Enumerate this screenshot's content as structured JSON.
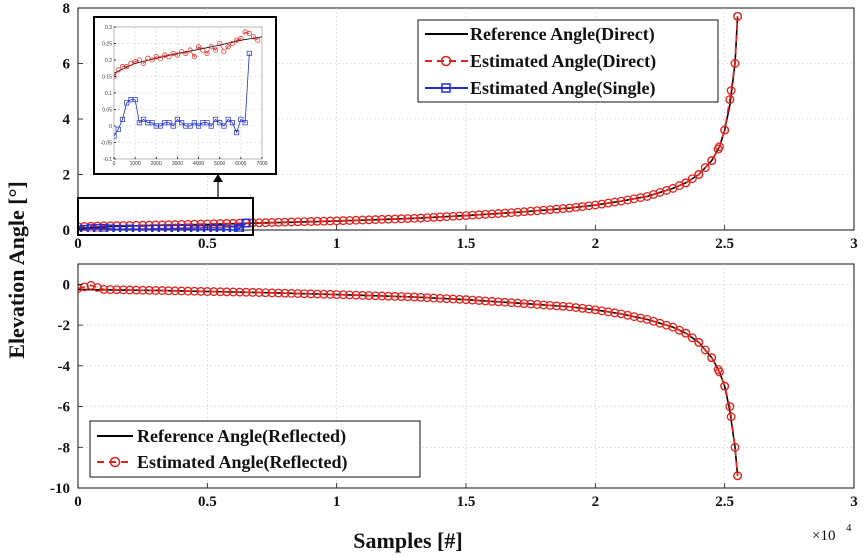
{
  "ylabel": "Elevation Angle [°]",
  "xlabel": "Samples [#]",
  "x_multiplier": "×10",
  "x_multiplier_exp": "4",
  "colors": {
    "reference": "#000000",
    "estimated": "#e8201a",
    "single": "#1f2fd6"
  },
  "chart_data": [
    {
      "type": "line",
      "panel": "top",
      "xlim": [
        0,
        30000
      ],
      "ylim": [
        0,
        8
      ],
      "xticks": [
        0,
        5000,
        10000,
        15000,
        20000,
        25000,
        30000
      ],
      "xtick_labels": [
        "0",
        "0.5",
        "1",
        "1.5",
        "2",
        "2.5",
        "3"
      ],
      "yticks": [
        0,
        2,
        4,
        6,
        8
      ],
      "ytick_labels": [
        "0",
        "2",
        "4",
        "6",
        "8"
      ],
      "grid": true,
      "legend_position": "top-right",
      "series": [
        {
          "name": "Reference Angle(Direct)",
          "style": "solid-black",
          "x": [
            0,
            1000,
            3000,
            5000,
            7000,
            10000,
            13000,
            15000,
            17000,
            19000,
            20000,
            21000,
            22000,
            23000,
            23500,
            24000,
            24500,
            24800,
            25000,
            25200,
            25400,
            25500
          ],
          "y": [
            0.05,
            0.12,
            0.17,
            0.2,
            0.25,
            0.32,
            0.42,
            0.52,
            0.64,
            0.79,
            0.9,
            1.04,
            1.21,
            1.5,
            1.7,
            2.0,
            2.5,
            3.0,
            3.6,
            4.5,
            6.0,
            7.7
          ]
        },
        {
          "name": "Estimated Angle(Direct)",
          "style": "dashed-red-circles",
          "x": [
            0,
            1000,
            3000,
            5000,
            7000,
            10000,
            13000,
            15000,
            17000,
            19000,
            20000,
            21000,
            22000,
            23000,
            23500,
            24000,
            24500,
            24800,
            25000,
            25200,
            25400,
            25500
          ],
          "y": [
            0.12,
            0.15,
            0.18,
            0.22,
            0.26,
            0.33,
            0.42,
            0.52,
            0.64,
            0.79,
            0.9,
            1.04,
            1.21,
            1.5,
            1.7,
            2.0,
            2.5,
            3.0,
            3.6,
            4.7,
            6.0,
            7.7
          ]
        },
        {
          "name": "Estimated Angle(Single)",
          "style": "solid-blue-squares",
          "x": [
            0,
            500,
            1000,
            1500,
            2000,
            2500,
            3000,
            3500,
            4000,
            4500,
            5000,
            5500,
            6000,
            6200,
            6500
          ],
          "y": [
            0.0,
            0.05,
            0.06,
            0.02,
            0.03,
            0.0,
            0.03,
            0.02,
            0.03,
            0.02,
            0.02,
            0.03,
            0.0,
            0.03,
            0.25
          ]
        }
      ]
    },
    {
      "type": "line",
      "panel": "inset",
      "xlim": [
        0,
        7000
      ],
      "ylim": [
        -0.1,
        0.3
      ],
      "xticks": [
        0,
        1000,
        2000,
        3000,
        4000,
        5000,
        6000,
        7000
      ],
      "xtick_labels": [
        "0",
        "1000",
        "2000",
        "3000",
        "4000",
        "5000",
        "6000",
        "7000"
      ],
      "yticks": [
        -0.1,
        -0.05,
        0,
        0.05,
        0.1,
        0.15,
        0.2,
        0.25,
        0.3
      ],
      "ytick_labels": [
        "-0.1",
        "-0.05",
        "0",
        "0.05",
        "0.1",
        "0.15",
        "0.2",
        "0.25",
        "0.3"
      ],
      "grid": true,
      "series": [
        {
          "style": "solid-black",
          "x": [
            0,
            500,
            1000,
            2000,
            3000,
            4000,
            5000,
            6000,
            7000
          ],
          "y": [
            0.16,
            0.175,
            0.19,
            0.205,
            0.22,
            0.232,
            0.245,
            0.26,
            0.27
          ]
        },
        {
          "style": "dashed-red-circles",
          "x": [
            0,
            200,
            400,
            600,
            800,
            1000,
            1200,
            1400,
            1600,
            1800,
            2000,
            2200,
            2400,
            2600,
            2800,
            3000,
            3200,
            3400,
            3600,
            3800,
            4000,
            4200,
            4400,
            4600,
            4800,
            5000,
            5200,
            5400,
            5600,
            5800,
            6000,
            6200,
            6400,
            6600,
            6800
          ],
          "y": [
            0.15,
            0.17,
            0.18,
            0.18,
            0.19,
            0.195,
            0.2,
            0.19,
            0.205,
            0.2,
            0.21,
            0.205,
            0.215,
            0.21,
            0.22,
            0.215,
            0.225,
            0.22,
            0.23,
            0.21,
            0.24,
            0.23,
            0.22,
            0.24,
            0.23,
            0.25,
            0.225,
            0.24,
            0.25,
            0.26,
            0.265,
            0.285,
            0.28,
            0.27,
            0.26
          ]
        },
        {
          "style": "solid-blue-squares",
          "x": [
            0,
            200,
            400,
            600,
            800,
            1000,
            1200,
            1400,
            1600,
            1800,
            2000,
            2200,
            2400,
            2600,
            2800,
            3000,
            3200,
            3400,
            3600,
            3800,
            4000,
            4200,
            4400,
            4600,
            4800,
            5000,
            5200,
            5400,
            5600,
            5800,
            6000,
            6200,
            6400
          ],
          "y": [
            -0.03,
            -0.01,
            0.02,
            0.07,
            0.08,
            0.08,
            0.01,
            0.02,
            0.01,
            0.01,
            0.0,
            0.0,
            0.01,
            0.01,
            0.0,
            0.02,
            0.01,
            0.0,
            0.0,
            0.01,
            0.0,
            0.01,
            0.01,
            0.0,
            0.02,
            0.01,
            0.0,
            0.02,
            0.01,
            -0.02,
            0.02,
            0.01,
            0.22
          ]
        }
      ]
    },
    {
      "type": "line",
      "panel": "bottom",
      "xlim": [
        0,
        30000
      ],
      "ylim": [
        -10,
        1
      ],
      "xticks": [
        0,
        5000,
        10000,
        15000,
        20000,
        25000,
        30000
      ],
      "xtick_labels": [
        "0",
        "0.5",
        "1",
        "1.5",
        "2",
        "2.5",
        "3"
      ],
      "yticks": [
        -10,
        -8,
        -6,
        -4,
        -2,
        0
      ],
      "ytick_labels": [
        "-10",
        "-8",
        "-6",
        "-4",
        "-2",
        "0"
      ],
      "grid": true,
      "legend_position": "bottom-left",
      "series": [
        {
          "name": "Reference Angle(Reflected)",
          "style": "solid-black",
          "x": [
            0,
            1000,
            3000,
            5000,
            7000,
            10000,
            13000,
            15000,
            17000,
            19000,
            20000,
            21000,
            22000,
            23000,
            23500,
            24000,
            24500,
            24800,
            25000,
            25200,
            25400,
            25500
          ],
          "y": [
            -0.25,
            -0.27,
            -0.3,
            -0.35,
            -0.4,
            -0.5,
            -0.62,
            -0.75,
            -0.92,
            -1.1,
            -1.25,
            -1.45,
            -1.72,
            -2.1,
            -2.4,
            -2.85,
            -3.6,
            -4.3,
            -5.0,
            -6.2,
            -8.0,
            -9.4
          ]
        },
        {
          "name": "Estimated Angle(Reflected)",
          "style": "dashed-red-circles",
          "x": [
            0,
            500,
            1000,
            3000,
            5000,
            7000,
            10000,
            13000,
            15000,
            17000,
            19000,
            20000,
            21000,
            22000,
            23000,
            23500,
            24000,
            24500,
            24800,
            25000,
            25200,
            25400,
            25500
          ],
          "y": [
            -0.2,
            -0.05,
            -0.25,
            -0.3,
            -0.35,
            -0.4,
            -0.5,
            -0.62,
            -0.75,
            -0.92,
            -1.1,
            -1.25,
            -1.45,
            -1.72,
            -2.1,
            -2.4,
            -2.85,
            -3.6,
            -4.3,
            -5.0,
            -6.0,
            -8.0,
            -9.4
          ]
        }
      ]
    }
  ]
}
